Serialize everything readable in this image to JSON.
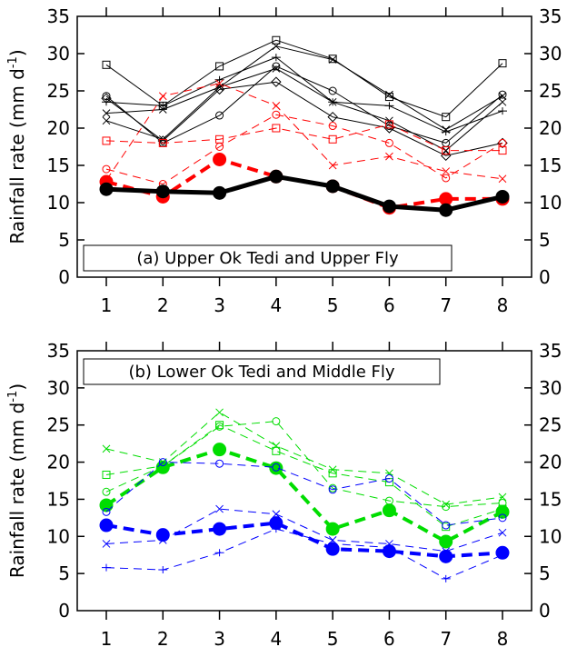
{
  "chart_data": [
    {
      "type": "line",
      "panel_label": "(a) Upper Ok Tedi and Upper Fly",
      "ylabel": "Rainfall rate (mm d",
      "ylabel_sup": "-1",
      "ylabel_close": ")",
      "x": [
        1,
        2,
        3,
        4,
        5,
        6,
        7,
        8
      ],
      "ylim": [
        0,
        35
      ],
      "xticks": [
        "1",
        "2",
        "3",
        "4",
        "5",
        "6",
        "7",
        "8"
      ],
      "yticks": [
        "0",
        "5",
        "10",
        "15",
        "20",
        "25",
        "30",
        "35"
      ],
      "colors": {
        "black": "#000000",
        "red": "#ff0000"
      },
      "series": [
        {
          "color": "#000000",
          "style": "solid",
          "width": 1,
          "marker": "open-square",
          "values": [
            28.5,
            23.0,
            28.3,
            31.8,
            29.3,
            24.2,
            21.5,
            28.7
          ]
        },
        {
          "color": "#000000",
          "style": "solid",
          "width": 1,
          "marker": "x",
          "values": [
            22.0,
            22.5,
            25.5,
            31.0,
            29.2,
            24.5,
            19.8,
            24.3
          ]
        },
        {
          "color": "#000000",
          "style": "solid",
          "width": 1,
          "marker": "plus",
          "values": [
            23.5,
            23.0,
            26.5,
            29.5,
            23.5,
            23.0,
            19.5,
            22.3
          ]
        },
        {
          "color": "#000000",
          "style": "solid",
          "width": 1,
          "marker": "open-circle",
          "values": [
            24.3,
            18.0,
            21.7,
            28.3,
            25.0,
            20.3,
            18.0,
            24.5
          ]
        },
        {
          "color": "#000000",
          "style": "solid",
          "width": 1,
          "marker": "open-diamond",
          "values": [
            24.0,
            18.3,
            25.2,
            26.2,
            21.5,
            20.0,
            16.3,
            18.0
          ]
        },
        {
          "color": "#000000",
          "style": "solid",
          "width": 1,
          "marker": "x",
          "values": [
            21.0,
            18.5,
            25.5,
            28.0,
            23.5,
            21.0,
            17.0,
            23.5
          ]
        },
        {
          "color": "#ff0000",
          "style": "dashed",
          "width": 1,
          "marker": "x",
          "values": [
            13.0,
            24.3,
            26.0,
            23.0,
            15.0,
            16.2,
            14.2,
            13.2
          ]
        },
        {
          "color": "#ff0000",
          "style": "dashed",
          "width": 1,
          "marker": "open-square",
          "values": [
            18.3,
            18.0,
            18.5,
            20.0,
            18.5,
            20.5,
            17.0,
            17.0
          ]
        },
        {
          "color": "#ff0000",
          "style": "dashed",
          "width": 1,
          "marker": "open-circle",
          "values": [
            14.5,
            12.5,
            17.5,
            21.8,
            20.3,
            18.0,
            13.3,
            18.0
          ]
        },
        {
          "color": "#ff0000",
          "style": "dashed",
          "width": 4,
          "marker": "filled-circle",
          "values": [
            12.8,
            10.8,
            15.8,
            13.5,
            12.2,
            9.3,
            10.5,
            10.5
          ]
        },
        {
          "color": "#000000",
          "style": "solid",
          "width": 5,
          "marker": "filled-circle",
          "values": [
            11.8,
            11.5,
            11.3,
            13.5,
            12.2,
            9.5,
            9.0,
            10.8
          ]
        }
      ]
    },
    {
      "type": "line",
      "panel_label": "(b) Lower Ok Tedi and Middle Fly",
      "ylabel": "Rainfall rate (mm d",
      "ylabel_sup": "-1",
      "ylabel_close": ")",
      "x": [
        1,
        2,
        3,
        4,
        5,
        6,
        7,
        8
      ],
      "ylim": [
        0,
        35
      ],
      "xticks": [
        "1",
        "2",
        "3",
        "4",
        "5",
        "6",
        "7",
        "8"
      ],
      "yticks": [
        "0",
        "5",
        "10",
        "15",
        "20",
        "25",
        "30",
        "35"
      ],
      "colors": {
        "green": "#00dd00",
        "blue": "#0000ff"
      },
      "series": [
        {
          "color": "#00dd00",
          "style": "dashed",
          "width": 1,
          "marker": "x",
          "values": [
            21.8,
            20.0,
            26.7,
            22.2,
            19.0,
            18.5,
            14.3,
            15.3
          ]
        },
        {
          "color": "#00dd00",
          "style": "dashed",
          "width": 1,
          "marker": "open-square",
          "values": [
            18.3,
            19.5,
            25.0,
            21.5,
            18.5,
            17.3,
            11.3,
            13.7
          ]
        },
        {
          "color": "#00dd00",
          "style": "dashed",
          "width": 1,
          "marker": "open-circle",
          "values": [
            16.0,
            19.5,
            24.8,
            25.5,
            16.5,
            14.8,
            14.0,
            14.5
          ]
        },
        {
          "color": "#00dd00",
          "style": "dashed",
          "width": 4,
          "marker": "filled-circle",
          "values": [
            14.2,
            19.3,
            21.7,
            19.2,
            11.0,
            13.5,
            9.3,
            13.3
          ]
        },
        {
          "color": "#0000ff",
          "style": "dashed",
          "width": 1,
          "marker": "open-circle",
          "values": [
            13.3,
            20.0,
            19.8,
            19.3,
            16.3,
            17.8,
            11.5,
            12.5
          ]
        },
        {
          "color": "#0000ff",
          "style": "dashed",
          "width": 1,
          "marker": "x",
          "values": [
            9.0,
            9.5,
            13.7,
            13.0,
            9.5,
            9.0,
            8.0,
            10.5
          ]
        },
        {
          "color": "#0000ff",
          "style": "dashed",
          "width": 4,
          "marker": "filled-circle",
          "values": [
            11.5,
            10.2,
            11.0,
            11.8,
            8.3,
            8.0,
            7.3,
            7.8
          ]
        },
        {
          "color": "#0000ff",
          "style": "dashed",
          "width": 1,
          "marker": "plus",
          "values": [
            5.8,
            5.5,
            7.8,
            11.0,
            9.0,
            8.5,
            4.3,
            7.5
          ]
        }
      ]
    }
  ]
}
